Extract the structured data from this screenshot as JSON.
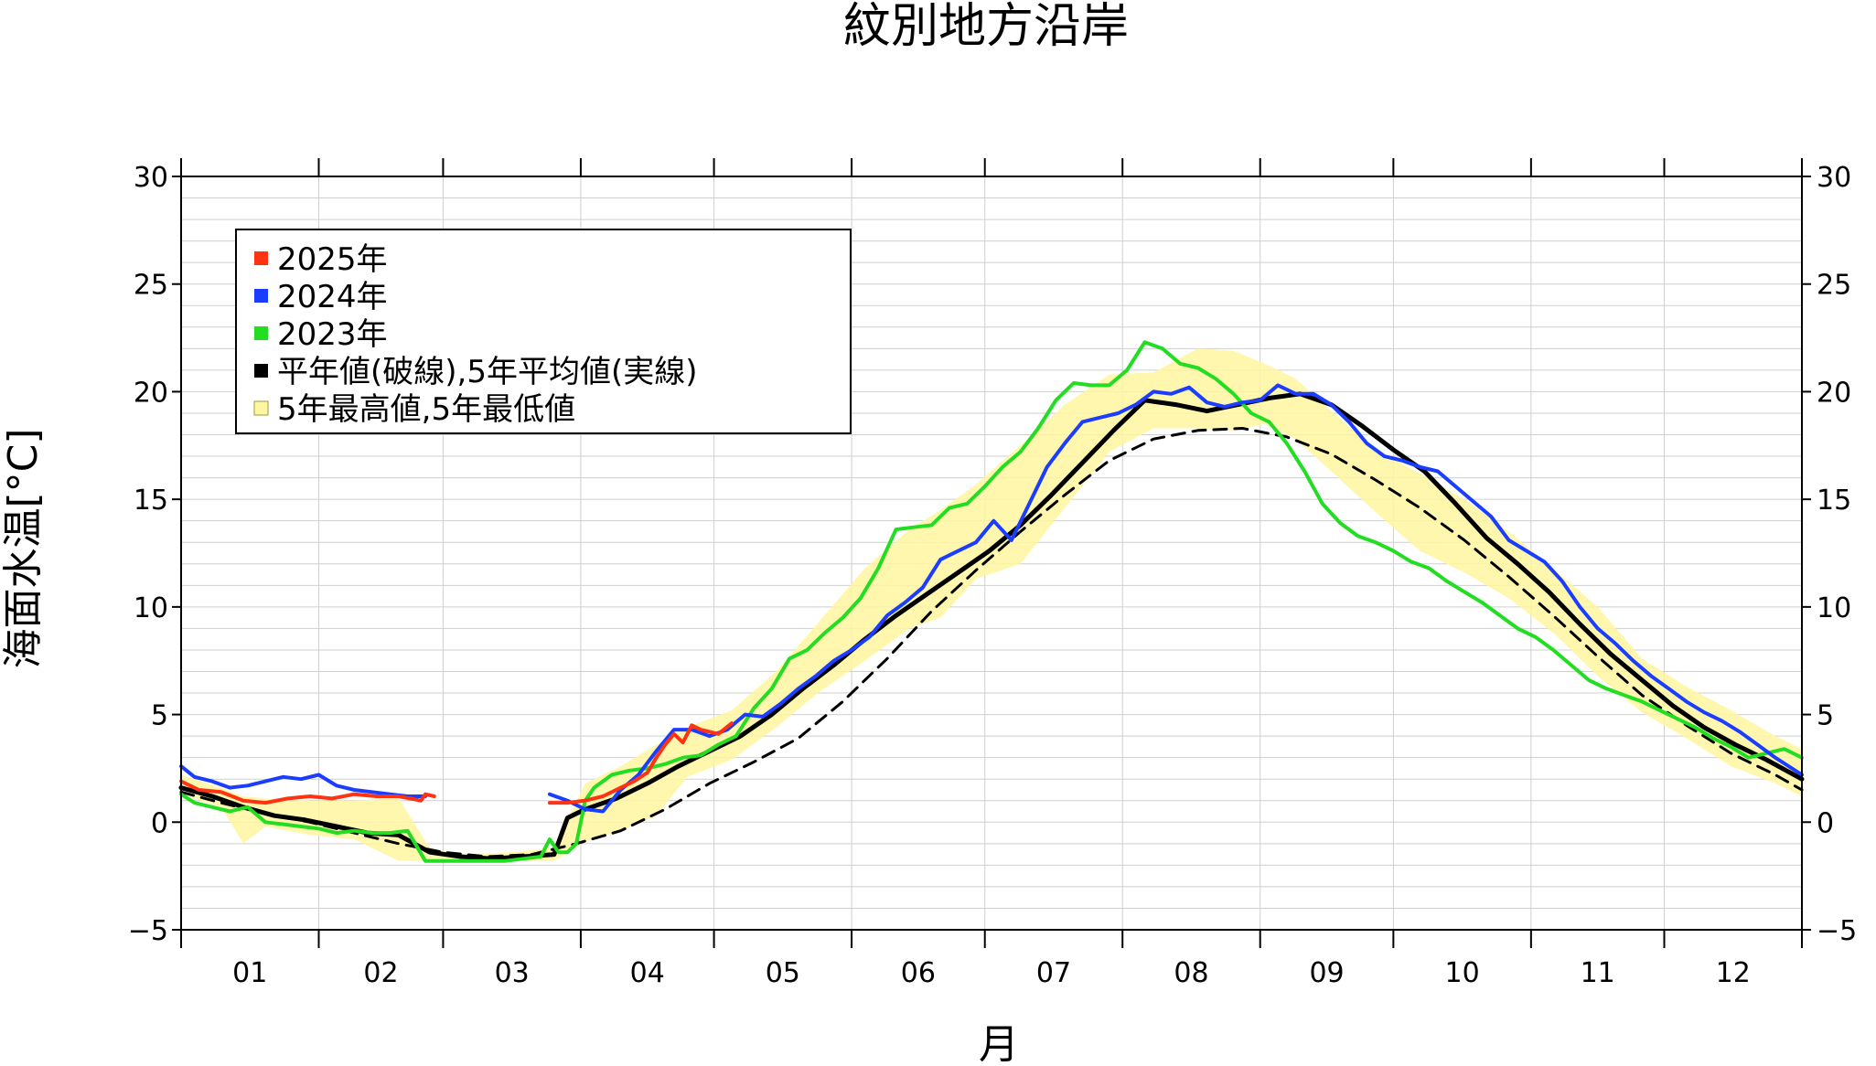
{
  "chart_data": {
    "type": "line",
    "title": "紋別地方沿岸",
    "xlabel": "月",
    "ylabel": "海面水温[°C]",
    "ylim": [
      -5,
      30
    ],
    "yticks": [
      -5,
      0,
      5,
      10,
      15,
      20,
      25,
      30
    ],
    "ytick_labels": [
      "−5",
      "0",
      "5",
      "10",
      "15",
      "20",
      "25",
      "30"
    ],
    "x_unit": "day of year",
    "xlim": [
      1,
      366
    ],
    "months": [
      "01",
      "02",
      "03",
      "04",
      "05",
      "06",
      "07",
      "08",
      "09",
      "10",
      "11",
      "12"
    ],
    "grid": true,
    "legend_position": "top-left",
    "legend": [
      {
        "label": "2025年",
        "color": "#ff3311"
      },
      {
        "label": "2024年",
        "color": "#1a3dff"
      },
      {
        "label": "2023年",
        "color": "#22dd22"
      },
      {
        "label": "平年値(破線),5年平均値(実線)",
        "color": "#000000"
      },
      {
        "label": "5年最高値,5年最低値",
        "color": "#fff6a0"
      }
    ],
    "series": [
      {
        "name": "2025年",
        "color": "#ff3311",
        "x": [
          1,
          5,
          10,
          15,
          20,
          25,
          30,
          35,
          40,
          45,
          50,
          55,
          56,
          58,
          61,
          64,
          66,
          68,
          70,
          72,
          74,
          77,
          80,
          84,
          88,
          92,
          96,
          100,
          103,
          106,
          108,
          110,
          112,
          114,
          116,
          118,
          120,
          122,
          125
        ],
        "y": [
          1.9,
          1.5,
          1.4,
          1.0,
          0.9,
          1.1,
          1.2,
          1.1,
          1.3,
          1.2,
          1.2,
          1.0,
          1.3,
          1.2,
          null,
          null,
          null,
          null,
          null,
          null,
          null,
          null,
          null,
          0.9,
          0.9,
          1.0,
          1.2,
          1.6,
          1.9,
          2.3,
          3.0,
          3.6,
          4.1,
          3.7,
          4.5,
          4.3,
          4.2,
          4.1,
          4.6
        ]
      },
      {
        "name": "2024年",
        "color": "#1a3dff",
        "x": [
          1,
          4,
          8,
          12,
          16,
          20,
          24,
          28,
          32,
          36,
          40,
          44,
          48,
          52,
          56,
          60,
          64,
          68,
          72,
          76,
          80,
          84,
          88,
          92,
          96,
          100,
          104,
          108,
          112,
          116,
          120,
          124,
          128,
          132,
          136,
          140,
          144,
          148,
          152,
          156,
          160,
          164,
          168,
          172,
          176,
          180,
          184,
          188,
          192,
          196,
          200,
          204,
          208,
          212,
          216,
          220,
          224,
          228,
          232,
          236,
          240,
          244,
          248,
          252,
          256,
          260,
          264,
          268,
          272,
          276,
          280,
          284,
          288,
          292,
          296,
          300,
          304,
          308,
          312,
          316,
          320,
          324,
          328,
          332,
          336,
          340,
          344,
          348,
          352,
          356,
          360,
          366
        ],
        "y": [
          2.6,
          2.1,
          1.9,
          1.6,
          1.7,
          1.9,
          2.1,
          2.0,
          2.2,
          1.7,
          1.5,
          1.4,
          1.3,
          1.2,
          1.2,
          null,
          null,
          null,
          null,
          null,
          null,
          1.3,
          1.0,
          0.6,
          0.5,
          1.5,
          2.2,
          3.3,
          4.3,
          4.3,
          4.0,
          4.3,
          5.0,
          4.9,
          5.5,
          6.2,
          6.8,
          7.5,
          8.0,
          8.6,
          9.6,
          10.2,
          10.9,
          12.2,
          12.6,
          13.0,
          14.0,
          13.1,
          14.8,
          16.5,
          17.6,
          18.6,
          18.8,
          19.0,
          19.4,
          20.0,
          19.9,
          20.2,
          19.5,
          19.3,
          19.5,
          19.6,
          20.3,
          19.9,
          19.9,
          19.4,
          18.6,
          17.6,
          17.0,
          16.8,
          16.5,
          16.3,
          15.6,
          14.9,
          14.2,
          13.1,
          12.6,
          12.1,
          11.2,
          10.0,
          9.0,
          8.3,
          7.5,
          6.8,
          6.2,
          5.6,
          5.1,
          4.7,
          4.2,
          3.6,
          3.0,
          2.2
        ]
      },
      {
        "name": "2023年",
        "color": "#22dd22",
        "x": [
          1,
          4,
          8,
          12,
          16,
          20,
          24,
          28,
          32,
          36,
          40,
          44,
          48,
          52,
          56,
          58,
          62,
          66,
          70,
          74,
          78,
          82,
          84,
          86,
          88,
          90,
          92,
          94,
          98,
          102,
          106,
          110,
          114,
          118,
          122,
          126,
          130,
          134,
          138,
          142,
          146,
          150,
          154,
          158,
          162,
          166,
          170,
          174,
          178,
          182,
          186,
          190,
          194,
          198,
          202,
          206,
          210,
          214,
          218,
          222,
          226,
          230,
          234,
          238,
          242,
          246,
          250,
          254,
          258,
          262,
          266,
          270,
          274,
          278,
          282,
          286,
          290,
          294,
          298,
          302,
          306,
          310,
          314,
          318,
          322,
          326,
          330,
          334,
          338,
          342,
          346,
          350,
          354,
          358,
          362,
          366
        ],
        "y": [
          1.3,
          0.9,
          0.7,
          0.5,
          0.7,
          0.0,
          -0.1,
          -0.2,
          -0.3,
          -0.5,
          -0.4,
          -0.5,
          -0.5,
          -0.4,
          -1.8,
          -1.8,
          -1.8,
          -1.8,
          -1.8,
          -1.8,
          -1.7,
          -1.6,
          -0.8,
          -1.4,
          -1.4,
          -1.0,
          1.0,
          1.6,
          2.2,
          2.4,
          2.5,
          2.7,
          3.0,
          3.1,
          3.6,
          4.0,
          5.3,
          6.2,
          7.6,
          8.0,
          8.8,
          9.5,
          10.4,
          11.8,
          13.6,
          13.7,
          13.8,
          14.6,
          14.8,
          15.6,
          16.5,
          17.2,
          18.3,
          19.6,
          20.4,
          20.3,
          20.3,
          21.0,
          22.3,
          22.0,
          21.3,
          21.1,
          20.6,
          19.9,
          19.0,
          18.6,
          17.6,
          16.3,
          14.8,
          13.9,
          13.3,
          13.0,
          12.6,
          12.1,
          11.8,
          11.2,
          10.7,
          10.2,
          9.6,
          9.0,
          8.6,
          8.0,
          7.3,
          6.6,
          6.2,
          5.9,
          5.6,
          5.2,
          4.8,
          4.4,
          3.9,
          3.5,
          3.0,
          3.2,
          3.4,
          3.0
        ]
      },
      {
        "name": "5年平均値",
        "color": "#000000",
        "x": [
          1,
          8,
          15,
          22,
          29,
          36,
          43,
          50,
          57,
          64,
          71,
          78,
          85,
          88,
          92,
          99,
          106,
          113,
          120,
          127,
          134,
          141,
          148,
          155,
          162,
          169,
          176,
          183,
          190,
          197,
          204,
          211,
          218,
          225,
          232,
          239,
          246,
          253,
          260,
          267,
          274,
          281,
          288,
          295,
          302,
          309,
          316,
          323,
          330,
          337,
          344,
          351,
          358,
          366
        ],
        "y": [
          1.6,
          1.2,
          0.7,
          0.3,
          0.1,
          -0.2,
          -0.5,
          -0.6,
          -1.4,
          -1.6,
          -1.7,
          -1.6,
          -1.5,
          0.2,
          0.6,
          1.1,
          1.8,
          2.6,
          3.3,
          4.0,
          5.0,
          6.2,
          7.3,
          8.5,
          9.6,
          10.6,
          11.6,
          12.6,
          13.8,
          15.2,
          16.7,
          18.2,
          19.6,
          19.4,
          19.1,
          19.4,
          19.7,
          19.9,
          19.4,
          18.4,
          17.3,
          16.3,
          14.8,
          13.2,
          12.0,
          10.7,
          9.2,
          7.8,
          6.6,
          5.4,
          4.4,
          3.6,
          2.9,
          2.0
        ]
      },
      {
        "name": "平年値",
        "color": "#000000",
        "dashed": true,
        "x": [
          1,
          10,
          20,
          30,
          40,
          50,
          60,
          70,
          80,
          90,
          100,
          110,
          120,
          130,
          140,
          150,
          160,
          170,
          180,
          190,
          200,
          210,
          220,
          230,
          240,
          250,
          260,
          270,
          280,
          290,
          300,
          310,
          320,
          330,
          340,
          350,
          360,
          366
        ],
        "y": [
          1.4,
          0.9,
          0.4,
          0.0,
          -0.5,
          -1.0,
          -1.4,
          -1.6,
          -1.5,
          -1.0,
          -0.4,
          0.6,
          1.8,
          2.8,
          3.9,
          5.6,
          7.6,
          9.8,
          11.7,
          13.5,
          15.2,
          16.8,
          17.8,
          18.2,
          18.3,
          17.9,
          17.1,
          15.9,
          14.6,
          13.1,
          11.4,
          9.6,
          7.7,
          5.9,
          4.5,
          3.2,
          2.2,
          1.5
        ]
      }
    ],
    "band": {
      "name": "5年最高値,5年最低値",
      "color": "#fff6a0",
      "x": [
        1,
        10,
        15,
        20,
        30,
        40,
        50,
        57,
        65,
        75,
        85,
        92,
        100,
        108,
        115,
        125,
        135,
        145,
        155,
        165,
        172,
        180,
        190,
        200,
        210,
        220,
        230,
        238,
        245,
        252,
        260,
        270,
        280,
        290,
        300,
        310,
        320,
        330,
        340,
        350,
        360,
        366
      ],
      "upper": [
        2.2,
        1.6,
        1.2,
        1.1,
        1.0,
        1.0,
        1.1,
        -1.2,
        -1.5,
        -1.4,
        -1.2,
        1.8,
        2.6,
        3.6,
        4.4,
        5.2,
        7.0,
        9.4,
        11.8,
        13.6,
        14.5,
        15.7,
        17.5,
        19.4,
        20.8,
        20.9,
        22.0,
        21.9,
        21.3,
        20.6,
        19.1,
        17.3,
        16.2,
        15.0,
        13.5,
        11.8,
        10.0,
        7.6,
        6.3,
        5.2,
        4.0,
        3.4
      ],
      "lower": [
        1.3,
        0.7,
        -1.0,
        -0.2,
        -0.6,
        -0.8,
        -1.8,
        -1.8,
        -1.8,
        -1.8,
        -1.8,
        -0.9,
        -0.4,
        0.3,
        2.1,
        2.9,
        4.4,
        6.1,
        7.5,
        9.0,
        9.5,
        11.3,
        12.0,
        14.6,
        17.2,
        18.3,
        18.3,
        18.2,
        18.5,
        17.8,
        16.3,
        14.4,
        12.6,
        11.6,
        10.4,
        8.8,
        6.8,
        5.1,
        3.9,
        2.6,
        1.8,
        1.2
      ]
    }
  }
}
